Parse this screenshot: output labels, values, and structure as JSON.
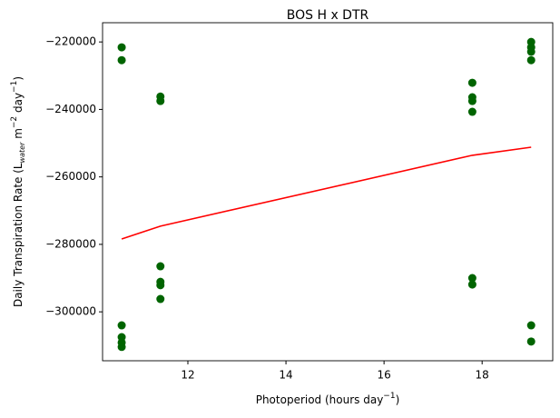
{
  "chart_data": {
    "type": "scatter",
    "title": "BOS H x DTR",
    "xlabel": [
      "Photoperiod (hours day",
      "−1",
      ")"
    ],
    "ylabel": [
      "Daily Transpiration Rate (L",
      "water",
      " m",
      "−2",
      " day",
      "−1",
      ")"
    ],
    "xlim": [
      10.26,
      19.44
    ],
    "ylim": [
      -314500,
      -214300
    ],
    "xticks": [
      12,
      14,
      16,
      18
    ],
    "yticks": [
      {
        "value": -220000,
        "label": "−220000"
      },
      {
        "value": -240000,
        "label": "−240000"
      },
      {
        "value": -260000,
        "label": "−260000"
      },
      {
        "value": -280000,
        "label": "−280000"
      },
      {
        "value": -300000,
        "label": "−300000"
      }
    ],
    "series": [
      {
        "type": "scatter",
        "color": "#006400",
        "x": [
          10.65,
          10.65,
          10.65,
          10.65,
          10.65,
          10.65,
          11.44,
          11.44,
          11.44,
          11.44,
          11.44,
          11.44,
          17.8,
          17.8,
          17.8,
          17.8,
          17.8,
          17.8,
          19.0,
          19.0,
          19.0,
          19.0,
          19.0,
          19.0
        ],
        "values": [
          -221600,
          -225400,
          -304000,
          -307500,
          -309100,
          -310400,
          -236200,
          -237500,
          -286500,
          -291100,
          -292100,
          -296200,
          -232100,
          -236400,
          -237500,
          -240700,
          -290000,
          -291900,
          -220000,
          -221600,
          -222900,
          -225400,
          -304000,
          -308800
        ]
      },
      {
        "type": "line",
        "color": "#ff0000",
        "x": [
          10.65,
          11.44,
          17.8,
          19.0
        ],
        "values": [
          -278400,
          -274600,
          -253600,
          -251200
        ]
      }
    ]
  }
}
